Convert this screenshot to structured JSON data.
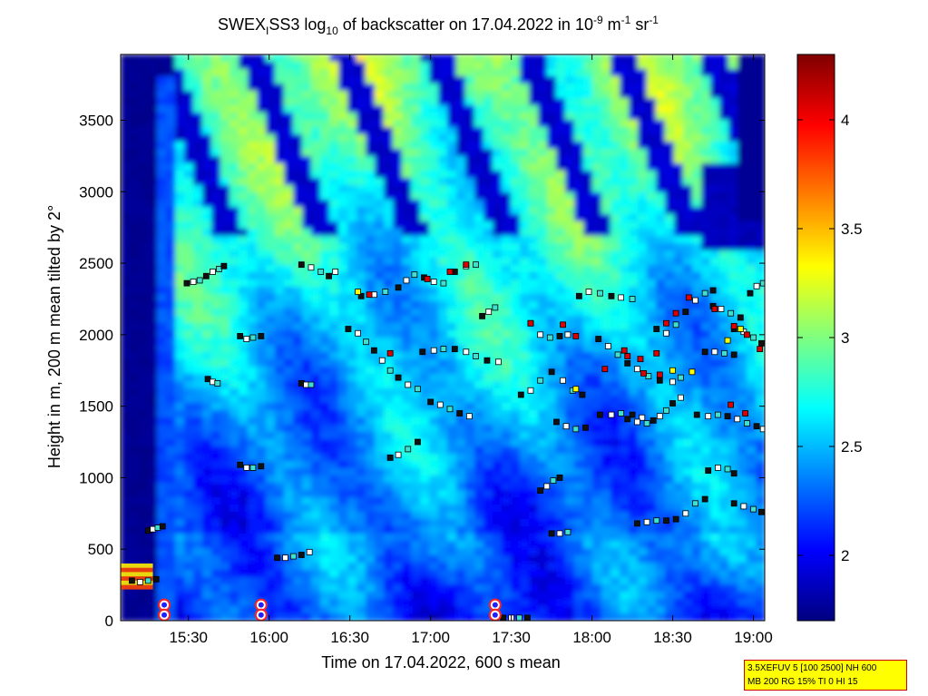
{
  "chart_data": {
    "type": "heatmap",
    "title": {
      "p1": "SWEX",
      "p1_sub": "I",
      "p2": "SS3 log",
      "p2_sub": "10",
      "p3": " of backscatter on 17.04.2022 in 10",
      "p3_sup": "-9",
      "p4": " m",
      "p4_sup": "-1",
      "p5": " sr",
      "p5_sup": "-1"
    },
    "xlabel": "Time on 17.04.2022, 600 s mean",
    "ylabel": "Height in m, 200 m mean tilted by 2°",
    "x_ticks": [
      "15:30",
      "16:00",
      "16:30",
      "17:00",
      "17:30",
      "18:00",
      "18:30",
      "19:00"
    ],
    "x_tick_hours": [
      15.5,
      16.0,
      16.5,
      17.0,
      17.5,
      18.0,
      18.5,
      19.0
    ],
    "xlim_hours": [
      15.08,
      19.07
    ],
    "y_ticks": [
      "0",
      "500",
      "1000",
      "1500",
      "2000",
      "2500",
      "3000",
      "3500"
    ],
    "y_tick_values": [
      0,
      500,
      1000,
      1500,
      2000,
      2500,
      3000,
      3500
    ],
    "ylim": [
      0,
      3960
    ],
    "colorbar": {
      "ticks": [
        "2",
        "2.5",
        "3",
        "3.5",
        "4"
      ],
      "tick_values": [
        2,
        2.5,
        3,
        3.5,
        4
      ],
      "range": [
        1.7,
        4.3
      ]
    },
    "colors": {
      "jet_stops": [
        "#00007f",
        "#0000ff",
        "#007fff",
        "#00ffff",
        "#7fff7f",
        "#ffff00",
        "#ff7f00",
        "#ff0000",
        "#7f0000"
      ]
    },
    "series": [
      {
        "points": [
          [
            15.49,
            2360
          ],
          [
            15.53,
            2370
          ],
          [
            15.57,
            2380
          ],
          [
            15.61,
            2410
          ],
          [
            15.65,
            2440
          ],
          [
            15.69,
            2460
          ],
          [
            15.72,
            2480
          ]
        ]
      },
      {
        "points": [
          [
            15.82,
            1990
          ],
          [
            15.86,
            1970
          ],
          [
            15.9,
            1980
          ],
          [
            15.95,
            1990
          ]
        ]
      },
      {
        "points": [
          [
            16.2,
            2490
          ],
          [
            16.26,
            2470
          ],
          [
            16.32,
            2440
          ],
          [
            16.37,
            2410
          ],
          [
            16.41,
            2440
          ]
        ]
      },
      {
        "points": [
          [
            16.49,
            2040
          ],
          [
            16.55,
            2010
          ],
          [
            16.6,
            1950
          ],
          [
            16.65,
            1890
          ],
          [
            16.7,
            1820
          ],
          [
            16.75,
            1750
          ],
          [
            16.8,
            1700
          ],
          [
            16.86,
            1650
          ],
          [
            16.92,
            1620
          ]
        ]
      },
      {
        "points": [
          [
            16.57,
            2270
          ],
          [
            16.65,
            2280
          ],
          [
            16.72,
            2300
          ],
          [
            16.8,
            2330
          ],
          [
            16.85,
            2380
          ],
          [
            16.9,
            2420
          ],
          [
            16.96,
            2400
          ],
          [
            17.02,
            2370
          ],
          [
            17.08,
            2360
          ]
        ]
      },
      {
        "points": [
          [
            17.15,
            2440
          ],
          [
            17.22,
            2480
          ],
          [
            17.28,
            2490
          ]
        ]
      },
      {
        "points": [
          [
            16.95,
            1880
          ],
          [
            17.02,
            1890
          ],
          [
            17.08,
            1900
          ],
          [
            17.15,
            1900
          ],
          [
            17.22,
            1880
          ],
          [
            17.28,
            1850
          ],
          [
            17.35,
            1820
          ],
          [
            17.42,
            1810
          ]
        ]
      },
      {
        "points": [
          [
            17.0,
            1530
          ],
          [
            17.06,
            1510
          ],
          [
            17.12,
            1480
          ],
          [
            17.18,
            1450
          ],
          [
            17.24,
            1430
          ]
        ]
      },
      {
        "points": [
          [
            16.75,
            1140
          ],
          [
            16.8,
            1160
          ],
          [
            16.86,
            1200
          ],
          [
            16.92,
            1250
          ]
        ]
      },
      {
        "points": [
          [
            16.05,
            440
          ],
          [
            16.1,
            440
          ],
          [
            16.15,
            450
          ],
          [
            16.2,
            460
          ],
          [
            16.25,
            480
          ]
        ]
      },
      {
        "points": [
          [
            15.82,
            1090
          ],
          [
            15.86,
            1070
          ],
          [
            15.9,
            1070
          ],
          [
            15.95,
            1080
          ]
        ]
      },
      {
        "points": [
          [
            15.25,
            630
          ],
          [
            15.28,
            640
          ],
          [
            15.31,
            650
          ],
          [
            15.34,
            660
          ]
        ]
      },
      {
        "points": [
          [
            15.15,
            280
          ],
          [
            15.2,
            270
          ],
          [
            15.25,
            280
          ],
          [
            15.3,
            290
          ]
        ]
      },
      {
        "points": [
          [
            15.62,
            1690
          ],
          [
            15.65,
            1670
          ],
          [
            15.68,
            1660
          ]
        ]
      },
      {
        "points": [
          [
            16.2,
            1660
          ],
          [
            16.23,
            1650
          ],
          [
            16.26,
            1650
          ]
        ]
      },
      {
        "points": [
          [
            17.62,
            2080
          ],
          [
            17.68,
            2000
          ],
          [
            17.74,
            1980
          ],
          [
            17.8,
            1990
          ],
          [
            17.85,
            2000
          ]
        ]
      },
      {
        "points": [
          [
            17.56,
            1580
          ],
          [
            17.62,
            1610
          ],
          [
            17.68,
            1680
          ],
          [
            17.75,
            1740
          ],
          [
            17.82,
            1680
          ],
          [
            17.88,
            1610
          ],
          [
            17.94,
            1580
          ]
        ]
      },
      {
        "points": [
          [
            17.92,
            2270
          ],
          [
            17.98,
            2300
          ],
          [
            18.05,
            2290
          ],
          [
            18.12,
            2270
          ],
          [
            18.18,
            2260
          ],
          [
            18.25,
            2250
          ]
        ]
      },
      {
        "points": [
          [
            17.78,
            1390
          ],
          [
            17.84,
            1360
          ],
          [
            17.9,
            1340
          ],
          [
            17.96,
            1350
          ]
        ]
      },
      {
        "points": [
          [
            18.05,
            1440
          ],
          [
            18.12,
            1440
          ],
          [
            18.18,
            1450
          ],
          [
            18.25,
            1440
          ],
          [
            18.31,
            1420
          ]
        ]
      },
      {
        "points": [
          [
            18.22,
            1410
          ],
          [
            18.28,
            1390
          ],
          [
            18.34,
            1380
          ],
          [
            18.38,
            1400
          ],
          [
            18.42,
            1430
          ],
          [
            18.46,
            1470
          ],
          [
            18.5,
            1520
          ],
          [
            18.55,
            1560
          ]
        ]
      },
      {
        "points": [
          [
            18.04,
            1970
          ],
          [
            18.1,
            1920
          ],
          [
            18.16,
            1860
          ],
          [
            18.22,
            1800
          ],
          [
            18.28,
            1760
          ],
          [
            18.35,
            1710
          ],
          [
            18.42,
            1680
          ],
          [
            18.5,
            1670
          ],
          [
            18.55,
            1700
          ]
        ]
      },
      {
        "points": [
          [
            18.4,
            2040
          ],
          [
            18.46,
            2010
          ],
          [
            18.52,
            2070
          ],
          [
            18.58,
            2160
          ],
          [
            18.64,
            2240
          ],
          [
            18.7,
            2290
          ],
          [
            18.75,
            2310
          ]
        ]
      },
      {
        "points": [
          [
            18.7,
            1880
          ],
          [
            18.76,
            1880
          ],
          [
            18.82,
            1870
          ],
          [
            18.88,
            1860
          ]
        ]
      },
      {
        "points": [
          [
            18.65,
            1440
          ],
          [
            18.72,
            1430
          ],
          [
            18.78,
            1440
          ],
          [
            18.84,
            1430
          ],
          [
            18.9,
            1410
          ],
          [
            18.96,
            1380
          ],
          [
            19.02,
            1360
          ],
          [
            19.06,
            1340
          ]
        ]
      },
      {
        "points": [
          [
            18.75,
            2200
          ],
          [
            18.8,
            2180
          ],
          [
            18.86,
            2150
          ],
          [
            18.92,
            2120
          ]
        ]
      },
      {
        "points": [
          [
            18.88,
            2040
          ],
          [
            18.94,
            2020
          ],
          [
            19.0,
            1980
          ],
          [
            19.05,
            1940
          ]
        ]
      },
      {
        "points": [
          [
            18.72,
            1050
          ],
          [
            18.78,
            1070
          ],
          [
            18.84,
            1060
          ],
          [
            18.88,
            1030
          ]
        ]
      },
      {
        "points": [
          [
            18.28,
            680
          ],
          [
            18.34,
            690
          ],
          [
            18.4,
            700
          ],
          [
            18.46,
            700
          ]
        ]
      },
      {
        "points": [
          [
            18.52,
            710
          ],
          [
            18.58,
            750
          ],
          [
            18.64,
            820
          ],
          [
            18.7,
            850
          ]
        ]
      },
      {
        "points": [
          [
            18.88,
            820
          ],
          [
            18.94,
            800
          ],
          [
            19.0,
            780
          ],
          [
            19.05,
            760
          ]
        ]
      },
      {
        "points": [
          [
            17.75,
            610
          ],
          [
            17.8,
            610
          ],
          [
            17.85,
            620
          ]
        ]
      },
      {
        "points": [
          [
            17.68,
            910
          ],
          [
            17.72,
            940
          ],
          [
            17.76,
            980
          ],
          [
            17.8,
            1000
          ]
        ]
      },
      {
        "points": [
          [
            17.32,
            2130
          ],
          [
            17.36,
            2160
          ],
          [
            17.4,
            2190
          ]
        ]
      },
      {
        "points": [
          [
            18.98,
            2290
          ],
          [
            19.02,
            2340
          ],
          [
            19.06,
            2360
          ]
        ]
      },
      {
        "points": [
          [
            17.45,
            20
          ],
          [
            17.5,
            20
          ],
          [
            17.55,
            20
          ],
          [
            17.6,
            20
          ]
        ]
      }
    ],
    "red_markers": [
      [
        16.62,
        2280
      ],
      [
        16.98,
        2390
      ],
      [
        17.12,
        2440
      ],
      [
        17.22,
        2490
      ],
      [
        17.62,
        2080
      ],
      [
        17.82,
        2070
      ],
      [
        17.9,
        1990
      ],
      [
        18.08,
        1760
      ],
      [
        18.22,
        1850
      ],
      [
        18.3,
        1830
      ],
      [
        18.46,
        2080
      ],
      [
        18.52,
        2150
      ],
      [
        18.6,
        2260
      ],
      [
        18.76,
        2180
      ],
      [
        18.88,
        2060
      ],
      [
        18.96,
        2000
      ],
      [
        19.04,
        1900
      ],
      [
        18.32,
        1730
      ],
      [
        18.42,
        1720
      ],
      [
        18.86,
        1510
      ],
      [
        18.95,
        1450
      ],
      [
        16.75,
        1870
      ],
      [
        18.4,
        1870
      ],
      [
        18.2,
        1890
      ]
    ],
    "yellow_markers": [
      [
        16.55,
        2300
      ],
      [
        18.5,
        1750
      ],
      [
        18.84,
        1960
      ],
      [
        18.92,
        2040
      ],
      [
        17.9,
        1620
      ],
      [
        18.62,
        1740
      ]
    ],
    "ringed_markers": [
      [
        15.35,
        110
      ],
      [
        15.35,
        40
      ],
      [
        15.95,
        110
      ],
      [
        15.95,
        40
      ],
      [
        17.4,
        110
      ],
      [
        17.4,
        40
      ]
    ]
  },
  "info_box": {
    "line1": "3.5XEFUV 5 [100 2500] NH 600",
    "line2": "MB 200 RG 15% TI 0 HI 15"
  }
}
